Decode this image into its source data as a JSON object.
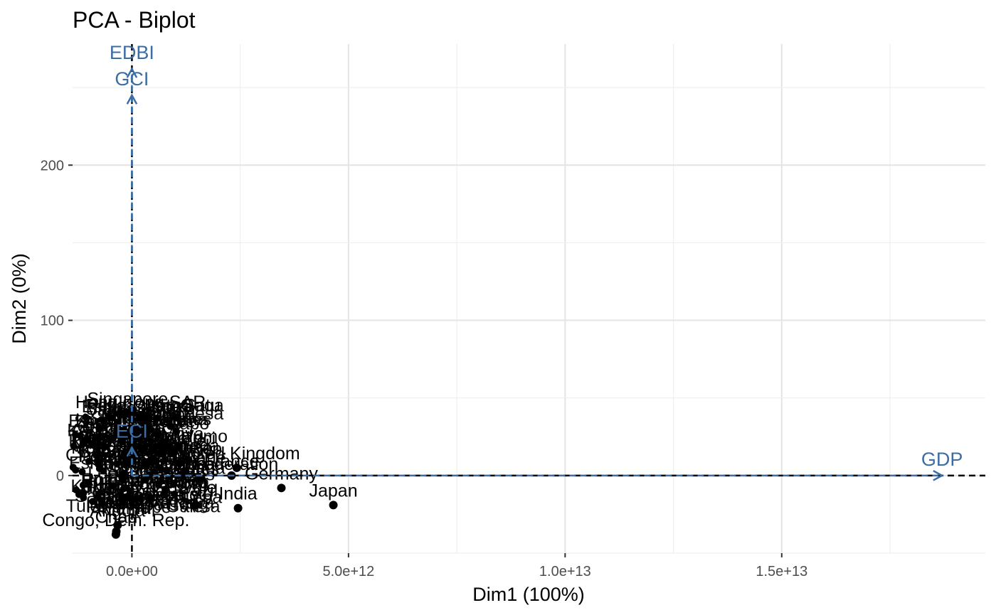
{
  "chart_data": {
    "type": "scatter",
    "title": "PCA - Biplot",
    "xlabel": "Dim1 (100%)",
    "ylabel": "Dim2 (0%)",
    "xlim": [
      -1370000000000.0,
      19700000000000.0
    ],
    "ylim": [
      -50,
      278
    ],
    "x_ticks": [
      0,
      5000000000000.0,
      10000000000000.0,
      15000000000000.0
    ],
    "x_tick_labels": [
      "0.0e+00",
      "5.0e+12",
      "1.0e+13",
      "1.5e+13"
    ],
    "y_ticks": [
      0,
      100,
      200
    ],
    "y_tick_labels": [
      "0",
      "100",
      "200"
    ],
    "grid": true,
    "accent_color": "#3b6ea5",
    "points": [
      {
        "label": "Japan",
        "x": 4650000000000.0,
        "y": -19
      },
      {
        "label": "India",
        "x": 2450000000000.0,
        "y": -21
      },
      {
        "label": "Brazil",
        "x": 1470000000000.0,
        "y": -19
      },
      {
        "label": "Germany",
        "x": 3450000000000.0,
        "y": -8
      },
      {
        "label": "United Kingdom",
        "x": 2420000000000.0,
        "y": 5
      },
      {
        "label": "France",
        "x": 2300000000000.0,
        "y": 0
      },
      {
        "label": "Russian Federation",
        "x": 1600000000000.0,
        "y": -2
      },
      {
        "label": "Italy",
        "x": 1200000000000.0,
        "y": 2
      },
      {
        "label": "Korea, Rep.",
        "x": 1100000000000.0,
        "y": 8
      },
      {
        "label": "Canada",
        "x": 1300000000000.0,
        "y": 10
      },
      {
        "label": "United States",
        "x": 600000000000.0,
        "y": 27
      },
      {
        "label": "Switzerland",
        "x": 400000000000.0,
        "y": 30
      },
      {
        "label": "Singapore",
        "x": -100000000000.0,
        "y": 40
      },
      {
        "label": "Hong Kong SAR",
        "x": 200000000000.0,
        "y": 38
      },
      {
        "label": "Angola",
        "x": -330000000000.0,
        "y": -32
      },
      {
        "label": "Chad",
        "x": -360000000000.0,
        "y": -36
      },
      {
        "label": "Congo, Dem. Rep.",
        "x": -370000000000.0,
        "y": -38
      }
    ],
    "variables": [
      {
        "label": "GDP",
        "x": 18700000000000.0,
        "y": 0
      },
      {
        "label": "GCI",
        "x": 0,
        "y": 245
      },
      {
        "label": "EDBI",
        "x": 0,
        "y": 262
      },
      {
        "label": "ECI",
        "x": 0,
        "y": 18
      }
    ]
  }
}
